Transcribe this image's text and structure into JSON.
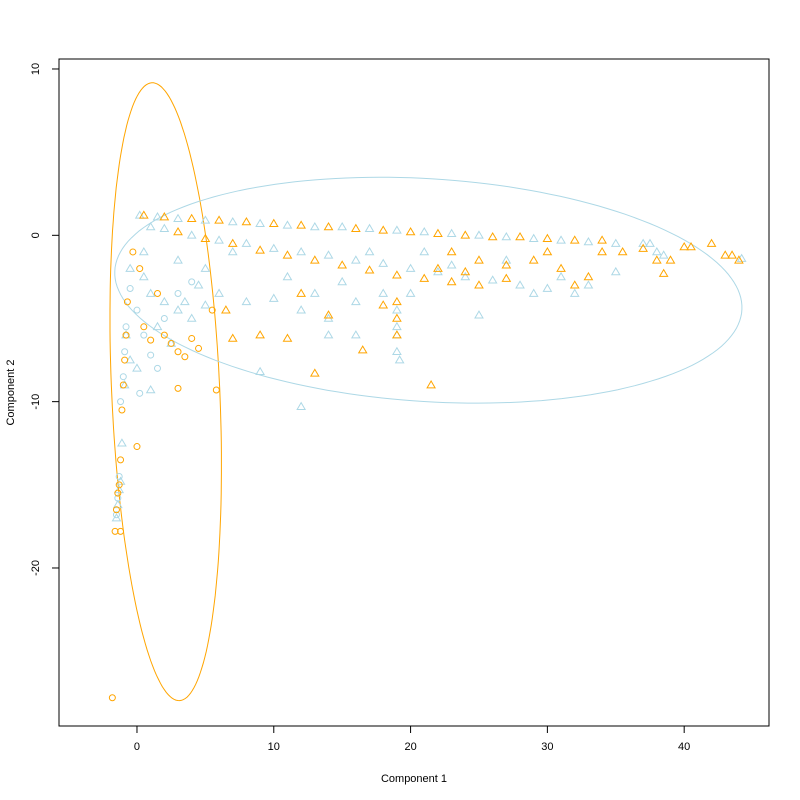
{
  "chart_data": {
    "type": "scatter",
    "title": "",
    "xlabel": "Component 1",
    "ylabel": "Component 2",
    "xlim": [
      -5.7,
      46.2
    ],
    "ylim": [
      -29.5,
      10.6
    ],
    "x_ticks": [
      0,
      10,
      20,
      30,
      40
    ],
    "y_ticks": [
      -20,
      -10,
      0,
      10
    ],
    "grid": false,
    "legend": "none",
    "series": [
      {
        "marker": "triangle",
        "color": "#ADD8E6",
        "points": [
          [
            0.2,
            1.2
          ],
          [
            1.5,
            1.1
          ],
          [
            3,
            1.0
          ],
          [
            5,
            0.9
          ],
          [
            7,
            0.8
          ],
          [
            9,
            0.7
          ],
          [
            11,
            0.6
          ],
          [
            13,
            0.5
          ],
          [
            15,
            0.5
          ],
          [
            17,
            0.4
          ],
          [
            19,
            0.3
          ],
          [
            21,
            0.2
          ],
          [
            23,
            0.1
          ],
          [
            25,
            0
          ],
          [
            27,
            -0.1
          ],
          [
            29,
            -0.2
          ],
          [
            31,
            -0.3
          ],
          [
            33,
            -0.4
          ],
          [
            35,
            -0.5
          ],
          [
            37,
            -0.5
          ],
          [
            2,
            0.4
          ],
          [
            4,
            0
          ],
          [
            6,
            -0.3
          ],
          [
            8,
            -0.5
          ],
          [
            10,
            -0.8
          ],
          [
            12,
            -1
          ],
          [
            14,
            -1.2
          ],
          [
            16,
            -1.5
          ],
          [
            18,
            -1.7
          ],
          [
            20,
            -2
          ],
          [
            22,
            -2.2
          ],
          [
            24,
            -2.5
          ],
          [
            26,
            -2.7
          ],
          [
            28,
            -3
          ],
          [
            30,
            -3.2
          ],
          [
            32,
            -3.5
          ],
          [
            -0.5,
            -2
          ],
          [
            0.5,
            -2.5
          ],
          [
            1,
            -3.5
          ],
          [
            2,
            -4
          ],
          [
            3,
            -4.5
          ],
          [
            4,
            -5
          ],
          [
            5,
            -4.2
          ],
          [
            6,
            -3.5
          ],
          [
            8,
            -4
          ],
          [
            10,
            -3.8
          ],
          [
            12,
            -4.5
          ],
          [
            14,
            -5
          ],
          [
            16,
            -4
          ],
          [
            18,
            -3.5
          ],
          [
            19,
            -4.5
          ],
          [
            19,
            -5.5
          ],
          [
            19,
            -6
          ],
          [
            19,
            -7
          ],
          [
            19.2,
            -7.5
          ],
          [
            9,
            -8.2
          ],
          [
            12,
            -10.3
          ],
          [
            14,
            -6
          ],
          [
            25,
            -4.8
          ],
          [
            29,
            -3.5
          ],
          [
            31,
            -2.5
          ],
          [
            33,
            -3
          ],
          [
            35,
            -2.2
          ],
          [
            37.5,
            -0.5
          ],
          [
            38,
            -1
          ],
          [
            38.5,
            -1.2
          ],
          [
            44.2,
            -1.4
          ],
          [
            -0.8,
            -6
          ],
          [
            -0.9,
            -9
          ],
          [
            -1.1,
            -12.5
          ],
          [
            -1.2,
            -14.8
          ],
          [
            -1.3,
            -15.3
          ],
          [
            -1.4,
            -16.2
          ],
          [
            -1.5,
            -17
          ],
          [
            -0.5,
            -7.5
          ],
          [
            0,
            -8
          ],
          [
            1,
            -9.3
          ],
          [
            1.5,
            -5.5
          ],
          [
            2.5,
            -6.5
          ],
          [
            3.5,
            -4
          ],
          [
            4.5,
            -3
          ],
          [
            0.5,
            -1
          ],
          [
            1,
            0.5
          ],
          [
            3,
            -1.5
          ],
          [
            5,
            -2
          ],
          [
            7,
            -1
          ],
          [
            11,
            -2.5
          ],
          [
            15,
            -2.8
          ],
          [
            17,
            -1
          ],
          [
            21,
            -1
          ],
          [
            23,
            -1.8
          ],
          [
            27,
            -1.5
          ],
          [
            13,
            -3.5
          ],
          [
            16,
            -6
          ],
          [
            20,
            -3.5
          ]
        ]
      },
      {
        "marker": "circle",
        "color": "#ADD8E6",
        "points": [
          [
            -0.8,
            -5.5
          ],
          [
            -0.9,
            -7
          ],
          [
            -1,
            -8.5
          ],
          [
            -1.2,
            -10
          ],
          [
            -1.3,
            -14.5
          ],
          [
            -1.4,
            -15.8
          ],
          [
            -1.5,
            -16.8
          ],
          [
            0,
            -4.5
          ],
          [
            0.5,
            -6
          ],
          [
            1,
            -7.2
          ],
          [
            1.5,
            -8
          ],
          [
            2,
            -5
          ],
          [
            3,
            -3.5
          ],
          [
            4,
            -2.8
          ],
          [
            -0.5,
            -3.2
          ],
          [
            0.2,
            -9.5
          ]
        ]
      },
      {
        "marker": "triangle",
        "color": "#FFA500",
        "points": [
          [
            0.5,
            1.2
          ],
          [
            2,
            1.1
          ],
          [
            4,
            1.0
          ],
          [
            6,
            0.9
          ],
          [
            8,
            0.8
          ],
          [
            10,
            0.7
          ],
          [
            12,
            0.6
          ],
          [
            14,
            0.5
          ],
          [
            16,
            0.4
          ],
          [
            18,
            0.3
          ],
          [
            20,
            0.2
          ],
          [
            22,
            0.1
          ],
          [
            24,
            0
          ],
          [
            26,
            -0.1
          ],
          [
            28,
            -0.1
          ],
          [
            30,
            -0.2
          ],
          [
            32,
            -0.3
          ],
          [
            34,
            -0.3
          ],
          [
            3,
            0.2
          ],
          [
            5,
            -0.2
          ],
          [
            7,
            -0.5
          ],
          [
            9,
            -0.9
          ],
          [
            11,
            -1.2
          ],
          [
            13,
            -1.5
          ],
          [
            15,
            -1.8
          ],
          [
            17,
            -2.1
          ],
          [
            19,
            -2.4
          ],
          [
            21,
            -2.6
          ],
          [
            23,
            -2.8
          ],
          [
            25,
            -3
          ],
          [
            27,
            -2.6
          ],
          [
            6.5,
            -4.5
          ],
          [
            7,
            -6.2
          ],
          [
            9,
            -6
          ],
          [
            11,
            -6.2
          ],
          [
            13,
            -8.3
          ],
          [
            16.5,
            -6.9
          ],
          [
            21.5,
            -9
          ],
          [
            19,
            -4
          ],
          [
            19,
            -5
          ],
          [
            19,
            -6
          ],
          [
            18,
            -4.2
          ],
          [
            14,
            -4.8
          ],
          [
            12,
            -3.5
          ],
          [
            29,
            -1.5
          ],
          [
            31,
            -2
          ],
          [
            32,
            -3
          ],
          [
            33,
            -2.5
          ],
          [
            34,
            -1
          ],
          [
            35.5,
            -1
          ],
          [
            37,
            -0.8
          ],
          [
            38,
            -1.5
          ],
          [
            39,
            -1.5
          ],
          [
            40,
            -0.7
          ],
          [
            40.5,
            -0.7
          ],
          [
            42,
            -0.5
          ],
          [
            43.5,
            -1.2
          ],
          [
            44,
            -1.5
          ],
          [
            43,
            -1.2
          ],
          [
            38.5,
            -2.3
          ],
          [
            30,
            -1
          ],
          [
            27,
            -1.8
          ],
          [
            24,
            -2.2
          ],
          [
            23,
            -1
          ],
          [
            25,
            -1.5
          ],
          [
            22,
            -2
          ]
        ]
      },
      {
        "marker": "circle",
        "color": "#FFA500",
        "points": [
          [
            -0.7,
            -4
          ],
          [
            -0.8,
            -6
          ],
          [
            -0.9,
            -7.5
          ],
          [
            -1,
            -9
          ],
          [
            -1.1,
            -10.5
          ],
          [
            -1.2,
            -13.5
          ],
          [
            -1.3,
            -15
          ],
          [
            -1.4,
            -15.5
          ],
          [
            -1.5,
            -16.5
          ],
          [
            -1.6,
            -17.8
          ],
          [
            -1.2,
            -17.8
          ],
          [
            -1.8,
            -27.8
          ],
          [
            0,
            -12.7
          ],
          [
            0.5,
            -5.5
          ],
          [
            1,
            -6.3
          ],
          [
            2,
            -6
          ],
          [
            2.5,
            -6.5
          ],
          [
            3,
            -7
          ],
          [
            3.5,
            -7.3
          ],
          [
            3,
            -9.2
          ],
          [
            5.8,
            -9.3
          ],
          [
            5.5,
            -4.5
          ],
          [
            4,
            -6.2
          ],
          [
            4.5,
            -6.8
          ],
          [
            1.5,
            -3.5
          ],
          [
            0.2,
            -2
          ],
          [
            -0.3,
            -1
          ]
        ]
      }
    ],
    "ellipses": [
      {
        "color": "#FFA500",
        "center": [
          2.1,
          -9.4
        ],
        "rx": 3.95,
        "ry": 18.6,
        "tilt": 0.055
      },
      {
        "color": "#ADD8E6",
        "center": [
          21.3,
          -3.3
        ],
        "rx": 22.95,
        "ry": 6.7,
        "tilt": -0.05
      }
    ]
  }
}
